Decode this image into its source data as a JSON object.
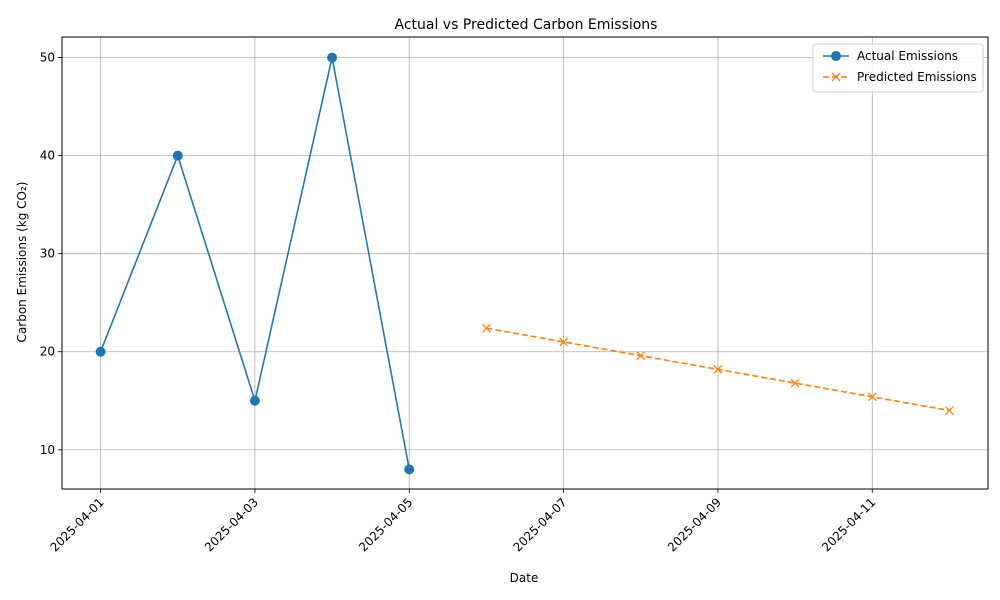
{
  "chart_data": {
    "type": "line",
    "title": "Actual vs Predicted Carbon Emissions",
    "xlabel": "Date",
    "ylabel": "Carbon Emissions (kg CO₂)",
    "xlim": [
      "2025-03-31T12:00",
      "2025-04-12T12:00"
    ],
    "ylim": [
      6,
      52.1
    ],
    "x_ticks": [
      "2025-04-01",
      "2025-04-03",
      "2025-04-05",
      "2025-04-07",
      "2025-04-09",
      "2025-04-11"
    ],
    "y_ticks": [
      10,
      20,
      30,
      40,
      50
    ],
    "grid": true,
    "legend_position": "upper right",
    "series": [
      {
        "name": "Actual Emissions",
        "style": "solid",
        "marker": "circle",
        "color": "#1f77b4",
        "x": [
          "2025-04-01",
          "2025-04-02",
          "2025-04-03",
          "2025-04-04",
          "2025-04-05"
        ],
        "y": [
          20,
          40,
          15,
          50,
          8
        ]
      },
      {
        "name": "Predicted Emissions",
        "style": "dashed",
        "marker": "x",
        "color": "#ff7f0e",
        "x": [
          "2025-04-06",
          "2025-04-07",
          "2025-04-08",
          "2025-04-09",
          "2025-04-10",
          "2025-04-11",
          "2025-04-12"
        ],
        "y": [
          22.4,
          21.0,
          19.6,
          18.2,
          16.8,
          15.4,
          14.0
        ]
      }
    ]
  }
}
